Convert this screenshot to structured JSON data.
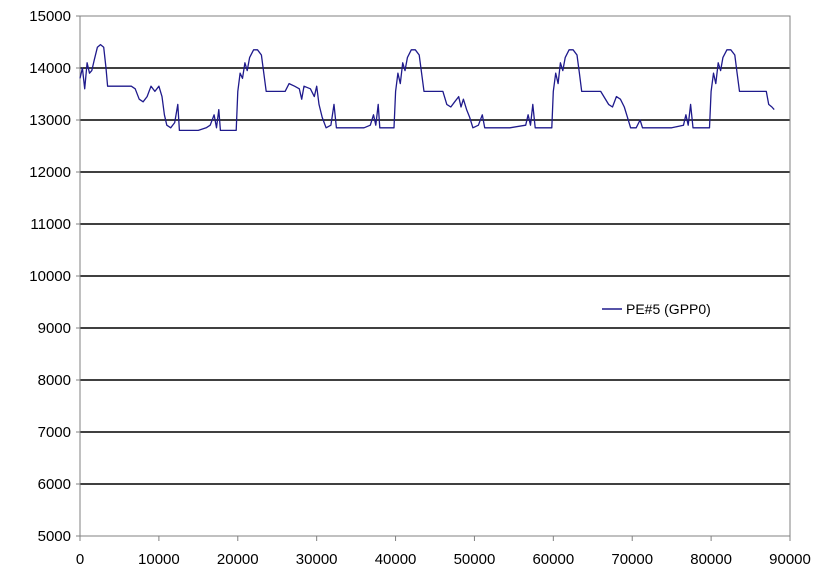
{
  "chart_data": {
    "type": "line",
    "title": "",
    "xlabel": "",
    "ylabel": "",
    "xlim": [
      0,
      90000
    ],
    "ylim": [
      5000,
      15000
    ],
    "x_ticks": [
      "0",
      "10000",
      "20000",
      "30000",
      "40000",
      "50000",
      "60000",
      "70000",
      "80000",
      "90000"
    ],
    "y_ticks": [
      "5000",
      "6000",
      "7000",
      "8000",
      "9000",
      "10000",
      "11000",
      "12000",
      "13000",
      "14000",
      "15000"
    ],
    "grid": "horizontal",
    "legend_position": "right",
    "series": [
      {
        "name": "PE#5 (GPP0)",
        "color": "#1f1a8c",
        "points": [
          [
            0,
            13800
          ],
          [
            300,
            14000
          ],
          [
            600,
            13600
          ],
          [
            900,
            14100
          ],
          [
            1200,
            13900
          ],
          [
            1500,
            13950
          ],
          [
            1800,
            14150
          ],
          [
            2200,
            14400
          ],
          [
            2600,
            14450
          ],
          [
            3000,
            14400
          ],
          [
            3300,
            14000
          ],
          [
            3500,
            13650
          ],
          [
            4500,
            13650
          ],
          [
            5500,
            13650
          ],
          [
            6500,
            13650
          ],
          [
            7000,
            13600
          ],
          [
            7500,
            13400
          ],
          [
            8000,
            13350
          ],
          [
            8500,
            13450
          ],
          [
            9000,
            13650
          ],
          [
            9500,
            13550
          ],
          [
            10000,
            13650
          ],
          [
            10400,
            13450
          ],
          [
            10700,
            13100
          ],
          [
            11000,
            12900
          ],
          [
            11500,
            12850
          ],
          [
            12000,
            12950
          ],
          [
            12400,
            13300
          ],
          [
            12600,
            12800
          ],
          [
            13500,
            12800
          ],
          [
            15000,
            12800
          ],
          [
            16000,
            12850
          ],
          [
            16500,
            12900
          ],
          [
            17000,
            13100
          ],
          [
            17300,
            12850
          ],
          [
            17600,
            13200
          ],
          [
            17800,
            12800
          ],
          [
            19000,
            12800
          ],
          [
            19800,
            12800
          ],
          [
            20000,
            13550
          ],
          [
            20300,
            13900
          ],
          [
            20600,
            13800
          ],
          [
            20900,
            14100
          ],
          [
            21200,
            13950
          ],
          [
            21500,
            14200
          ],
          [
            22000,
            14350
          ],
          [
            22500,
            14350
          ],
          [
            23000,
            14250
          ],
          [
            23300,
            13900
          ],
          [
            23600,
            13550
          ],
          [
            25000,
            13550
          ],
          [
            26000,
            13550
          ],
          [
            26500,
            13700
          ],
          [
            27200,
            13650
          ],
          [
            27800,
            13600
          ],
          [
            28100,
            13400
          ],
          [
            28400,
            13650
          ],
          [
            29200,
            13600
          ],
          [
            29700,
            13450
          ],
          [
            30000,
            13650
          ],
          [
            30300,
            13300
          ],
          [
            30700,
            13050
          ],
          [
            31200,
            12850
          ],
          [
            31800,
            12900
          ],
          [
            32200,
            13300
          ],
          [
            32500,
            12850
          ],
          [
            34000,
            12850
          ],
          [
            36000,
            12850
          ],
          [
            36800,
            12900
          ],
          [
            37200,
            13100
          ],
          [
            37500,
            12900
          ],
          [
            37800,
            13300
          ],
          [
            38000,
            12850
          ],
          [
            39000,
            12850
          ],
          [
            39800,
            12850
          ],
          [
            40000,
            13550
          ],
          [
            40300,
            13900
          ],
          [
            40600,
            13700
          ],
          [
            40900,
            14100
          ],
          [
            41200,
            13950
          ],
          [
            41500,
            14200
          ],
          [
            42000,
            14350
          ],
          [
            42500,
            14350
          ],
          [
            43000,
            14250
          ],
          [
            43300,
            13900
          ],
          [
            43600,
            13550
          ],
          [
            45000,
            13550
          ],
          [
            46000,
            13550
          ],
          [
            46500,
            13300
          ],
          [
            47000,
            13250
          ],
          [
            47500,
            13350
          ],
          [
            48000,
            13450
          ],
          [
            48300,
            13250
          ],
          [
            48600,
            13400
          ],
          [
            49000,
            13200
          ],
          [
            49400,
            13050
          ],
          [
            49800,
            12850
          ],
          [
            50500,
            12900
          ],
          [
            51000,
            13100
          ],
          [
            51300,
            12850
          ],
          [
            52500,
            12850
          ],
          [
            53500,
            12850
          ],
          [
            54500,
            12850
          ],
          [
            56500,
            12900
          ],
          [
            56800,
            13100
          ],
          [
            57100,
            12900
          ],
          [
            57400,
            13300
          ],
          [
            57700,
            12850
          ],
          [
            59000,
            12850
          ],
          [
            59800,
            12850
          ],
          [
            60000,
            13550
          ],
          [
            60300,
            13900
          ],
          [
            60600,
            13700
          ],
          [
            60900,
            14100
          ],
          [
            61200,
            13950
          ],
          [
            61500,
            14200
          ],
          [
            62000,
            14350
          ],
          [
            62500,
            14350
          ],
          [
            63000,
            14250
          ],
          [
            63300,
            13900
          ],
          [
            63600,
            13550
          ],
          [
            65000,
            13550
          ],
          [
            66000,
            13550
          ],
          [
            67000,
            13300
          ],
          [
            67500,
            13250
          ],
          [
            68000,
            13450
          ],
          [
            68500,
            13400
          ],
          [
            69000,
            13250
          ],
          [
            69400,
            13050
          ],
          [
            69800,
            12850
          ],
          [
            70500,
            12850
          ],
          [
            71000,
            13000
          ],
          [
            71300,
            12850
          ],
          [
            73000,
            12850
          ],
          [
            75000,
            12850
          ],
          [
            76500,
            12900
          ],
          [
            76800,
            13100
          ],
          [
            77100,
            12900
          ],
          [
            77400,
            13300
          ],
          [
            77700,
            12850
          ],
          [
            79000,
            12850
          ],
          [
            79800,
            12850
          ],
          [
            80000,
            13550
          ],
          [
            80300,
            13900
          ],
          [
            80600,
            13700
          ],
          [
            80900,
            14100
          ],
          [
            81200,
            13950
          ],
          [
            81500,
            14200
          ],
          [
            82000,
            14350
          ],
          [
            82500,
            14350
          ],
          [
            83000,
            14250
          ],
          [
            83300,
            13900
          ],
          [
            83600,
            13550
          ],
          [
            85000,
            13550
          ],
          [
            86000,
            13550
          ],
          [
            87000,
            13550
          ],
          [
            87300,
            13300
          ],
          [
            87700,
            13250
          ],
          [
            88000,
            13200
          ]
        ]
      }
    ]
  }
}
